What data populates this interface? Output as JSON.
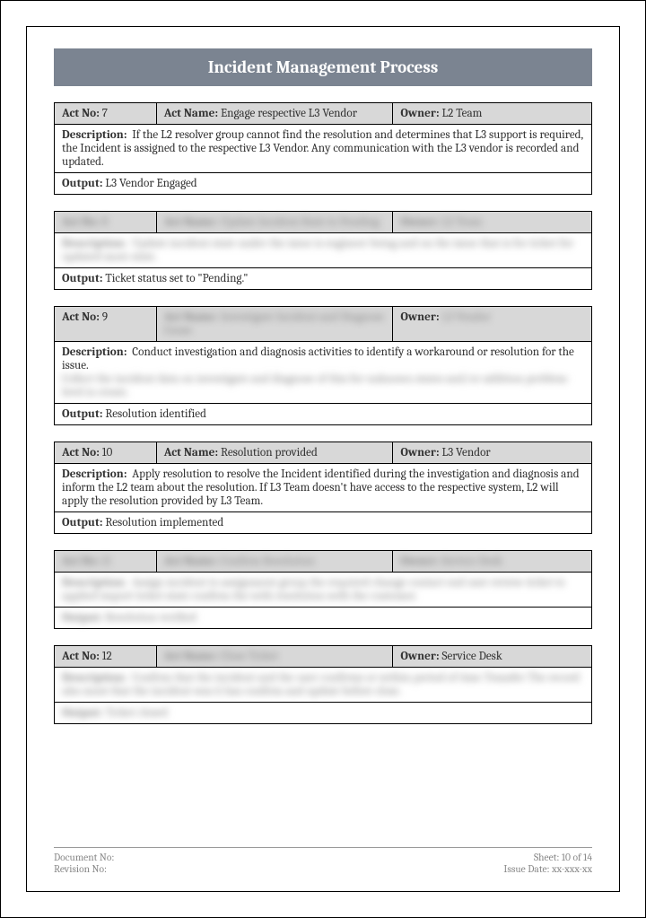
{
  "title": "Incident Management Process",
  "acts": [
    {
      "no": "7",
      "name": "Engage respective L3 Vendor",
      "owner": "L2 Team",
      "desc": "If the L2 resolver group cannot find the resolution and determines that L3 support is required, the Incident is assigned to the respective L3 Vendor. Any communication with the L3 vendor is recorded and updated.",
      "output": "L3 Vendor Engaged"
    },
    {
      "no": "8",
      "name": "Update Incident State to Pending",
      "owner": "L2 Team",
      "desc": "Update incident state  under the issue is engineer being  and on the issue that is  for ticket for updated more state.",
      "output": "Ticket status set to \"Pending.\""
    },
    {
      "no": "9",
      "name": "Investigate Incident and Diagnose Cause",
      "owner": "L3 Vendor",
      "desc_prefix": "Conduct investigation and diagnosis activities to identify a workaround or resolution for the issue.",
      "desc_blur": "Collect the incident data on investigate and diagnose of this  for unknown states and/or addition problem-level  is create.",
      "output": "Resolution identified"
    },
    {
      "no": "10",
      "name": "Resolution provided",
      "owner": "L3 Vendor",
      "desc": "Apply resolution to resolve the Incident identified during the investigation and diagnosis and inform the L2 team about the resolution. If L3 Team doesn't have access to the respective system, L2 will apply the resolution provided by L3 Team.",
      "output": "Resolution implemented"
    },
    {
      "no": "11",
      "name": "Confirm Resolution",
      "owner": "Service Desk",
      "desc": "Assign incident to assignment group  the  required change  contact end user  review ticket to  applied import  ticket state  confirm the  with resolution  with the customer.",
      "output": "Resolution verified"
    },
    {
      "no": "12",
      "name": "Close Ticket",
      "owner": "Service Desk",
      "desc": "Confirm that the incident and the user confirms or within  period of time  Transfer  The record also must that the incident was it has confirm  and update  before close.",
      "output": "Ticket closed"
    }
  ],
  "labels": {
    "act_no": "Act No:",
    "act_name": "Act Name:",
    "owner": "Owner:",
    "description": "Description:",
    "output": "Output:"
  },
  "footer": {
    "doc_no_label": "Document No:",
    "rev_no_label": "Revision No:",
    "sheet_label": "Sheet: 10 of 14",
    "issue_label": "Issue Date: xx-xxx-xx"
  },
  "colors": {
    "title_bg": "#7b8491",
    "header_bg": "#d8d8d8",
    "border": "#000000",
    "text": "#333333",
    "footer_text": "#888888"
  }
}
